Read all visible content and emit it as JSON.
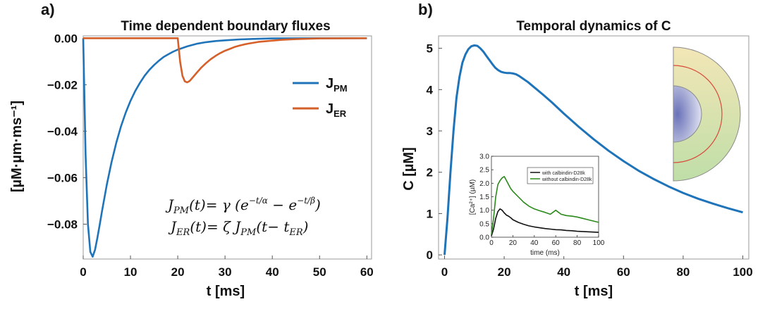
{
  "panels": {
    "a_label": "a)",
    "b_label": "b)"
  },
  "colors": {
    "blue": "#1f74b9",
    "orange": "#d5602a",
    "inset_with": "#111111",
    "inset_without": "#2a8a1a"
  },
  "equations": {
    "line1_lhs": "J",
    "line1_sub": "PM",
    "line1_rhs": "(t)= γ (e",
    "line1_exp1": "−t/α",
    "line1_mid": " − e",
    "line1_exp2": "−t/β",
    "line1_end": ")",
    "line2_lhs": "J",
    "line2_sub": "ER",
    "line2_rhs": "(t)= ζ J",
    "line2_sub2": "PM",
    "line2_end": "(t− t",
    "line2_sub3": "ER",
    "line2_close": ")"
  },
  "chart_data": [
    {
      "type": "line",
      "title": "Time dependent boundary fluxes",
      "xlabel": "t [ms]",
      "ylabel": "[µM·µm·ms⁻¹]",
      "xlim": [
        0,
        61
      ],
      "ylim": [
        -0.095,
        0.001
      ],
      "xticks": [
        0,
        10,
        20,
        30,
        40,
        50,
        60
      ],
      "xtick_labels": [
        "0",
        "10",
        "20",
        "30",
        "40",
        "50",
        "60"
      ],
      "yticks": [
        0,
        -0.02,
        -0.04,
        -0.06,
        -0.08
      ],
      "ytick_labels": [
        "0.00",
        "−0.02",
        "−0.04",
        "−0.06",
        "−0.08"
      ],
      "legend_position": "right",
      "series": [
        {
          "name": "J",
          "name_sub": "PM",
          "x": [
            0,
            0.5,
            1,
            1.5,
            2,
            2.5,
            3,
            3.5,
            4,
            5,
            6,
            7,
            8,
            9,
            10,
            11,
            12,
            13,
            14,
            15,
            16,
            17,
            18,
            19,
            20,
            22,
            24,
            26,
            28,
            30,
            33,
            36,
            40,
            50,
            60
          ],
          "y": [
            0,
            -0.0503,
            -0.0799,
            -0.0919,
            -0.094,
            -0.091,
            -0.0859,
            -0.0801,
            -0.0742,
            -0.063,
            -0.0533,
            -0.045,
            -0.0379,
            -0.032,
            -0.027,
            -0.0227,
            -0.0192,
            -0.0161,
            -0.0136,
            -0.0115,
            -0.0097,
            -0.0081,
            -0.0069,
            -0.0058,
            -0.0049,
            -0.0035,
            -0.0024,
            -0.0017,
            -0.0012,
            -0.0009,
            -0.0005,
            -0.0003,
            -0.0001,
            0,
            0
          ]
        },
        {
          "name": "J",
          "name_sub": "ER",
          "x": [
            0,
            19.9,
            20,
            20.5,
            21,
            21.5,
            22,
            22.5,
            23,
            24,
            25,
            26,
            27,
            28,
            29,
            30,
            31,
            32,
            33,
            34,
            35,
            37,
            39,
            42,
            45,
            50,
            60
          ],
          "y": [
            0,
            0,
            0,
            -0.0102,
            -0.0162,
            -0.0186,
            -0.019,
            -0.0184,
            -0.0173,
            -0.0149,
            -0.0126,
            -0.0107,
            -0.009,
            -0.0076,
            -0.0064,
            -0.0054,
            -0.0046,
            -0.0038,
            -0.0032,
            -0.0027,
            -0.0023,
            -0.0016,
            -0.0012,
            -0.0007,
            -0.0004,
            -0.0001,
            0
          ]
        }
      ]
    },
    {
      "type": "line",
      "title": "Temporal dynamics of C",
      "xlabel": "t [ms]",
      "ylabel": "C [µM]",
      "xlim": [
        -2,
        102
      ],
      "ylim": [
        -0.1,
        5.3
      ],
      "xticks": [
        0,
        20,
        40,
        60,
        80,
        100
      ],
      "xtick_labels": [
        "0",
        "20",
        "40",
        "60",
        "80",
        "100"
      ],
      "yticks": [
        0,
        1,
        2,
        3,
        4,
        5
      ],
      "ytick_labels": [
        "0",
        "1",
        "2",
        "3",
        "4",
        "5"
      ],
      "series": [
        {
          "x": [
            0,
            1,
            2,
            3,
            4,
            5,
            6,
            7,
            8,
            9,
            10,
            11,
            12,
            13,
            14,
            15,
            16,
            17,
            18,
            19,
            20,
            21,
            22,
            23,
            24,
            25,
            26,
            28,
            30,
            33,
            36,
            40,
            45,
            50,
            55,
            60,
            65,
            70,
            75,
            80,
            85,
            90,
            95,
            100
          ],
          "y": [
            0,
            0.9,
            2.0,
            3.0,
            3.8,
            4.3,
            4.65,
            4.85,
            4.98,
            5.05,
            5.07,
            5.06,
            5.0,
            4.92,
            4.82,
            4.72,
            4.62,
            4.53,
            4.47,
            4.43,
            4.41,
            4.4,
            4.4,
            4.39,
            4.37,
            4.33,
            4.28,
            4.18,
            4.06,
            3.88,
            3.69,
            3.42,
            3.1,
            2.8,
            2.52,
            2.27,
            2.04,
            1.84,
            1.66,
            1.5,
            1.36,
            1.24,
            1.13,
            1.03
          ]
        }
      ]
    },
    {
      "type": "line",
      "title": "",
      "xlabel": "time (ms)",
      "ylabel": "[Ca²⁺] (µM)",
      "xlim": [
        0,
        100
      ],
      "ylim": [
        0,
        3.0
      ],
      "xticks": [
        0,
        20,
        40,
        60,
        80,
        100
      ],
      "xtick_labels": [
        "0",
        "20",
        "40",
        "60",
        "80",
        "100"
      ],
      "yticks": [
        0,
        0.5,
        1.0,
        1.5,
        2.0,
        2.5,
        3.0
      ],
      "ytick_labels": [
        "0.0",
        "0.5",
        "1.0",
        "1.5",
        "2.0",
        "2.5",
        "3.0"
      ],
      "legend_position": "top-right",
      "series": [
        {
          "name": "with calbindin-D28k",
          "x": [
            0,
            2,
            4,
            6,
            8,
            10,
            12,
            14,
            16,
            18,
            20,
            25,
            30,
            35,
            40,
            45,
            50,
            55,
            60,
            65,
            70,
            75,
            80,
            85,
            90,
            95,
            100
          ],
          "y": [
            0.05,
            0.3,
            0.7,
            0.95,
            1.05,
            1.0,
            0.9,
            0.82,
            0.78,
            0.72,
            0.65,
            0.55,
            0.48,
            0.42,
            0.38,
            0.35,
            0.32,
            0.3,
            0.28,
            0.27,
            0.25,
            0.24,
            0.22,
            0.21,
            0.2,
            0.19,
            0.18
          ]
        },
        {
          "name": "without calbindin-D28k",
          "x": [
            0,
            2,
            4,
            6,
            8,
            10,
            12,
            14,
            16,
            18,
            20,
            25,
            30,
            35,
            40,
            45,
            50,
            55,
            60,
            65,
            70,
            75,
            80,
            85,
            90,
            95,
            100
          ],
          "y": [
            0.1,
            0.7,
            1.5,
            1.95,
            2.1,
            2.2,
            2.25,
            2.1,
            1.95,
            1.8,
            1.7,
            1.5,
            1.3,
            1.15,
            1.05,
            0.98,
            0.92,
            0.85,
            1.0,
            0.85,
            0.8,
            0.78,
            0.75,
            0.7,
            0.65,
            0.6,
            0.55
          ]
        }
      ]
    }
  ]
}
